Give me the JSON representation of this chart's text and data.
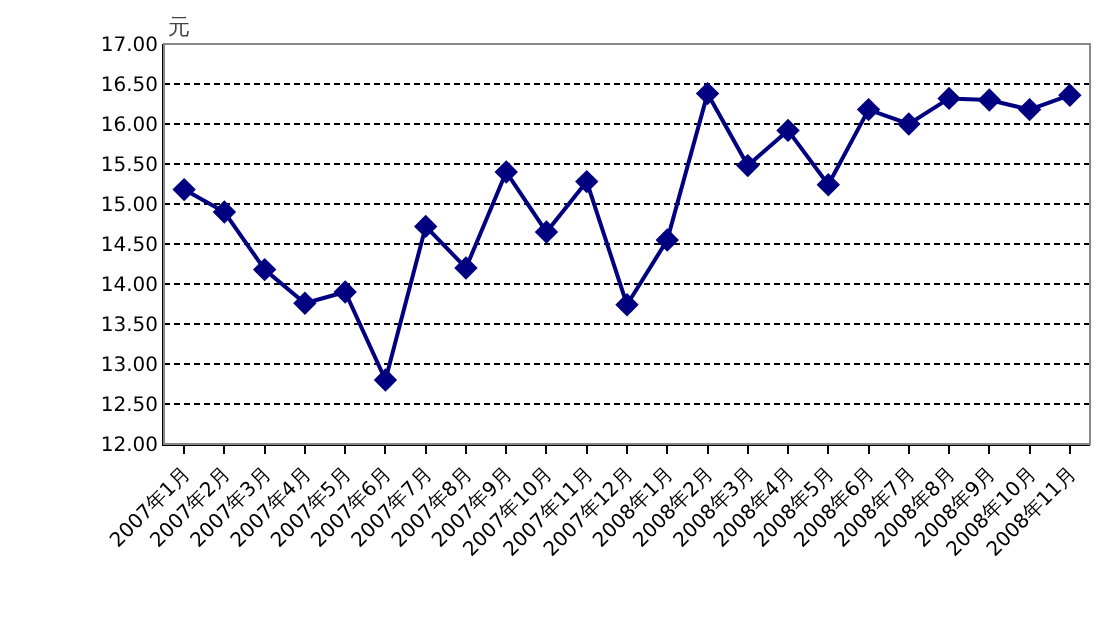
{
  "chart_data": {
    "type": "line",
    "ylabel": "元",
    "categories": [
      "2007年1月",
      "2007年2月",
      "2007年3月",
      "2007年4月",
      "2007年5月",
      "2007年6月",
      "2007年7月",
      "2007年8月",
      "2007年9月",
      "2007年10月",
      "2007年11月",
      "2007年12月",
      "2008年1月",
      "2008年2月",
      "2008年3月",
      "2008年4月",
      "2008年5月",
      "2008年6月",
      "2008年7月",
      "2008年8月",
      "2008年9月",
      "2008年10月",
      "2008年11月"
    ],
    "series": [
      {
        "color": "#000080",
        "values": [
          15.18,
          14.9,
          14.18,
          13.76,
          13.9,
          12.8,
          14.72,
          14.2,
          15.4,
          14.65,
          15.28,
          13.74,
          14.55,
          16.38,
          15.48,
          15.92,
          15.24,
          16.18,
          16.0,
          16.32,
          16.3,
          16.18,
          16.36
        ]
      }
    ],
    "ylim": [
      12,
      17
    ],
    "yticks": [
      {
        "value": 12,
        "label": "12.00"
      },
      {
        "value": 12.5,
        "label": "12.50"
      },
      {
        "value": 13,
        "label": "13.00"
      },
      {
        "value": 13.5,
        "label": "13.50"
      },
      {
        "value": 14,
        "label": "14.00"
      },
      {
        "value": 14.5,
        "label": "14.50"
      },
      {
        "value": 15,
        "label": "15.00"
      },
      {
        "value": 15.5,
        "label": "15.50"
      },
      {
        "value": 16,
        "label": "16.00"
      },
      {
        "value": 16.5,
        "label": "16.50"
      },
      {
        "value": 17,
        "label": "17.00"
      }
    ],
    "grid": "y",
    "marker": "diamond",
    "line_style": "solid"
  }
}
